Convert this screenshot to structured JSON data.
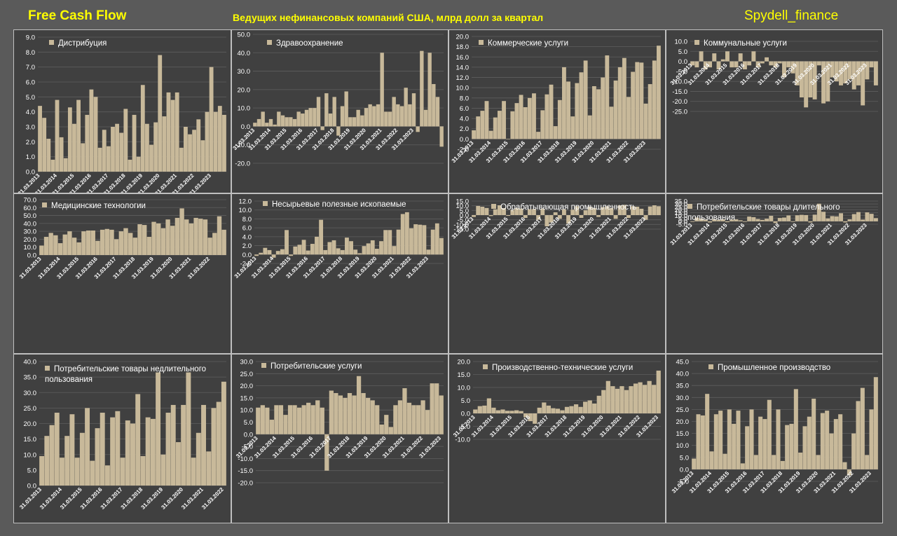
{
  "header": {
    "left": "Free Cash Flow",
    "center": "Ведущих нефинансовых компаний США, млрд долл за квартал",
    "right": "Spydell_finance"
  },
  "colors": {
    "bar": "#c8b99a",
    "panel": "#404040",
    "background": "#5a5a5a",
    "header": "#ffff00"
  },
  "x_tick_labels": [
    "31.03.2013",
    "31.03.2014",
    "31.03.2015",
    "31.03.2016",
    "31.03.2017",
    "31.03.2018",
    "31.03.2019",
    "31.03.2020",
    "31.03.2021",
    "31.03.2022",
    "31.03.2023"
  ],
  "chart_data": [
    {
      "type": "bar",
      "title": "Дистрибуция",
      "ylim": [
        0,
        9
      ],
      "ystep": 1,
      "decimals": 1,
      "categories_start": "2013-Q1",
      "values": [
        4.4,
        3.6,
        2.2,
        0.8,
        4.8,
        2.3,
        0.9,
        4.3,
        3.2,
        4.8,
        1.9,
        3.8,
        5.5,
        5.0,
        1.6,
        2.8,
        1.7,
        3.0,
        3.2,
        2.6,
        4.2,
        0.8,
        3.8,
        1.0,
        5.8,
        3.2,
        1.8,
        3.3,
        7.8,
        3.7,
        5.3,
        4.8,
        5.3,
        1.6,
        3.0,
        2.5,
        2.8,
        3.5,
        2.1,
        4.0,
        7.0,
        4.0,
        4.4,
        3.8
      ]
    },
    {
      "type": "bar",
      "title": "Здравоохранение",
      "ylim": [
        -20,
        50
      ],
      "ystep": 10,
      "decimals": 1,
      "categories_start": "2013-Q1",
      "values": [
        2,
        4,
        8,
        2,
        4,
        1,
        8,
        6,
        5,
        5,
        4,
        8,
        7,
        9,
        10,
        10,
        16,
        -2,
        18,
        7,
        16,
        -5,
        11,
        19,
        5,
        5,
        9,
        6,
        10,
        12,
        11,
        12,
        40,
        8,
        8,
        16,
        12,
        11,
        21,
        12,
        18,
        -3,
        41,
        9,
        40,
        23,
        16,
        -11
      ]
    },
    {
      "type": "bar",
      "title": "Коммерческие услуги",
      "ylim": [
        -2,
        20
      ],
      "ystep": 2,
      "decimals": 1,
      "categories_start": "2013-Q1",
      "values": [
        1.7,
        4.4,
        5.5,
        7.4,
        1.6,
        4.2,
        5.5,
        7.4,
        0.0,
        5.4,
        7.0,
        8.6,
        6.2,
        8.0,
        8.9,
        1.4,
        5.6,
        8.7,
        10.6,
        2.5,
        7.6,
        14.0,
        11.2,
        4.4,
        10.9,
        13.0,
        15.3,
        4.6,
        10.3,
        9.7,
        12.0,
        16.3,
        6.3,
        11.4,
        14.0,
        15.8,
        8.2,
        13.1,
        15.0,
        14.9,
        6.9,
        10.7,
        15.3,
        18.2
      ]
    },
    {
      "type": "bar",
      "title": "Коммунальные услуги",
      "ylim": [
        -25,
        10
      ],
      "ystep": 5,
      "decimals": 1,
      "categories_start": "2013-Q1",
      "values": [
        -2,
        -3,
        5,
        -4,
        -3,
        4,
        -4,
        1,
        5,
        -3,
        -3,
        4,
        -4,
        -2,
        5,
        -3,
        -1,
        2,
        -2,
        -3,
        -1,
        -8,
        -3,
        -6,
        -12,
        -18,
        -23,
        -18,
        -19,
        -2,
        -21,
        -20,
        -8,
        -10,
        -12,
        -11,
        -9,
        -14,
        -12,
        -22,
        -9,
        -3,
        -12
      ]
    },
    {
      "type": "bar",
      "title": "Медицинские технологии",
      "ylim": [
        0,
        70
      ],
      "ystep": 10,
      "decimals": 1,
      "categories_start": "2013-Q1",
      "values": [
        12,
        23,
        28,
        25,
        15,
        26,
        30,
        22,
        16,
        30,
        31,
        31,
        18,
        32,
        33,
        32,
        20,
        30,
        34,
        28,
        22,
        39,
        38,
        23,
        42,
        40,
        34,
        45,
        37,
        47,
        59,
        45,
        40,
        47,
        46,
        45,
        22,
        28,
        49,
        32
      ]
    },
    {
      "type": "bar",
      "title": "Несырьевые полезные ископаемые",
      "ylim": [
        -2,
        12
      ],
      "ystep": 2,
      "decimals": 1,
      "categories_start": "2013-Q1",
      "values": [
        -0.3,
        0.4,
        1.5,
        1.0,
        -0.7,
        0.8,
        1.2,
        5.5,
        -0.3,
        1.8,
        2.2,
        3.3,
        0.9,
        2.4,
        4.0,
        7.8,
        1.0,
        2.8,
        3.2,
        1.4,
        1.0,
        3.8,
        3.0,
        1.1,
        0.3,
        1.9,
        2.5,
        3.2,
        1.3,
        3.0,
        5.5,
        5.5,
        1.9,
        5.6,
        9.1,
        9.5,
        5.9,
        6.8,
        6.7,
        6.6,
        1.1,
        5.6,
        7.0,
        3.7
      ]
    },
    {
      "type": "bar",
      "title": "Обрабатывающая промышленность",
      "ylim": [
        -15,
        15
      ],
      "ystep": 5,
      "decimals": 1,
      "categories_start": "2013-Q1",
      "values": [
        -2,
        9.8,
        9.0,
        7.6,
        -1,
        6.2,
        10.5,
        7.5,
        -0.8,
        5.6,
        7.5,
        7.0,
        -3,
        6.2,
        6.5,
        -5,
        7.0,
        -12,
        -8,
        3,
        -4,
        6.0,
        -9,
        5.8,
        9.5,
        -3,
        5.2,
        9.0,
        7.5,
        -2,
        8.5,
        9.5,
        7.5,
        -4,
        10.5,
        11.0,
        -3,
        9.5,
        9.0,
        6.8,
        -5,
        9.2,
        10.5,
        9.5
      ]
    },
    {
      "type": "bar",
      "title": "Потребительские товары длительного пользования",
      "ylim": [
        -5,
        35
      ],
      "ystep": 5,
      "decimals": 1,
      "categories_start": "2013-Q1",
      "values": [
        -1,
        6.5,
        4.5,
        2.8,
        -2,
        3.8,
        2.5,
        3.5,
        -1.5,
        3.0,
        3.5,
        1.8,
        -1,
        8.2,
        7.2,
        4.0,
        2.5,
        4.5,
        9.5,
        -3,
        5.8,
        6.5,
        10.2,
        -1,
        10.5,
        11.2,
        10.8,
        -2,
        11.5,
        30.5,
        16.5,
        5,
        9.0,
        8.5,
        14.0,
        -2,
        3.5,
        12.5,
        16.0,
        3.0,
        15.5,
        13.0,
        5.5
      ]
    },
    {
      "type": "bar",
      "title": "Потребительские товары недлительного пользования",
      "ylim": [
        0,
        40
      ],
      "ystep": 5,
      "decimals": 1,
      "categories_start": "2013-Q1",
      "values": [
        9.5,
        16,
        19.5,
        23.5,
        9,
        16,
        23,
        9,
        17,
        25,
        8,
        18.5,
        23.5,
        6.5,
        22,
        24,
        9,
        21,
        20,
        29.5,
        9.5,
        22,
        21.5,
        36.5,
        10,
        23.5,
        26,
        14,
        26,
        36.5,
        9,
        17,
        26,
        11,
        25,
        27,
        33.5
      ]
    },
    {
      "type": "bar",
      "title": "Потребительские услуги",
      "ylim": [
        -20,
        30
      ],
      "ystep": 5,
      "decimals": 1,
      "categories_start": "2013-Q1",
      "values": [
        11,
        12,
        11,
        6,
        12,
        12,
        8,
        12,
        12,
        11,
        12,
        13,
        12,
        14,
        11,
        -15,
        18,
        17,
        16,
        15,
        17,
        16,
        24,
        17,
        15,
        14,
        12,
        4,
        8,
        3,
        12,
        14,
        19,
        13,
        12,
        12,
        14,
        10,
        21,
        21,
        16
      ]
    },
    {
      "type": "bar",
      "title": "Производственно-технические услуги",
      "ylim": [
        -10,
        20
      ],
      "ystep": 5,
      "decimals": 1,
      "categories_start": "2013-Q1",
      "values": [
        1.5,
        2.8,
        3.0,
        5.8,
        2.2,
        1.2,
        1.5,
        1.0,
        1.0,
        1.2,
        0.9,
        -1.5,
        -3,
        -4,
        2.2,
        4.2,
        3.0,
        2.0,
        1.8,
        1.2,
        2.5,
        2.8,
        3.5,
        2.5,
        4.5,
        5.0,
        3.8,
        6.8,
        9.0,
        12.5,
        10.5,
        9.5,
        10.5,
        9.0,
        10.5,
        11.5,
        12.0,
        11.0,
        12.5,
        11.0,
        16.5
      ]
    },
    {
      "type": "bar",
      "title": "Промышленное производство",
      "ylim": [
        -5,
        45
      ],
      "ystep": 5,
      "decimals": 1,
      "categories_start": "2013-Q1",
      "values": [
        4.5,
        23,
        22.5,
        31.5,
        7.5,
        23,
        24.5,
        6.5,
        25,
        19,
        24.5,
        2.5,
        18,
        25,
        6,
        22,
        21,
        29,
        6,
        25,
        3.5,
        18.5,
        19,
        33.5,
        7,
        18,
        22,
        29.5,
        6,
        23.5,
        24.5,
        15,
        21,
        23,
        3,
        -2.5,
        15,
        28.5,
        34,
        6,
        25,
        38.5
      ]
    }
  ]
}
